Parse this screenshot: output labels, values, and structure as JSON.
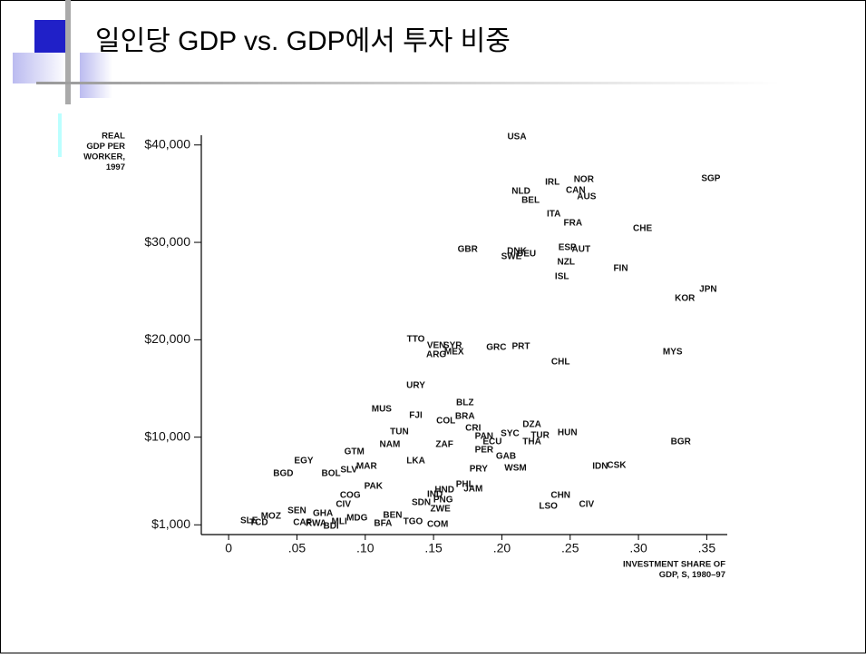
{
  "chart_data": {
    "type": "scatter",
    "title": "일인당 GDP vs. GDP에서 투자 비중",
    "y_label": [
      "REAL",
      "GDP PER",
      "WORKER,",
      "1997"
    ],
    "x_label": [
      "INVESTMENT SHARE OF",
      "GDP, S, 1980–97"
    ],
    "xlim": [
      -0.02,
      0.365
    ],
    "ylim": [
      0,
      41000
    ],
    "xticks": [
      0,
      {
        "value": 0.05,
        "label": ".05"
      },
      {
        "value": 0.1,
        "label": ".10"
      },
      {
        "value": 0.15,
        "label": ".15"
      },
      {
        "value": 0.2,
        "label": ".20"
      },
      {
        "value": 0.25,
        "label": ".25"
      },
      {
        "value": 0.3,
        "label": ".30"
      },
      {
        "value": 0.35,
        "label": ".35"
      }
    ],
    "yticks": [
      {
        "value": 1000,
        "label": "$1,000"
      },
      {
        "value": 10000,
        "label": "$10,000"
      },
      {
        "value": 20000,
        "label": "$20,000"
      },
      {
        "value": 30000,
        "label": "$30,000"
      },
      {
        "value": 40000,
        "label": "$40,000"
      }
    ],
    "labels": [
      "USA",
      "SGP",
      "IRL",
      "NOR",
      "CAN",
      "AUS",
      "NLD",
      "BEL",
      "ITA",
      "FRA",
      "CHE",
      "GBR",
      "DNK",
      "SWE",
      "DEU",
      "ESP",
      "AUT",
      "NZL",
      "ISL",
      "FIN",
      "JPN",
      "KOR",
      "TTO",
      "VEN",
      "SYR",
      "ARG",
      "MEX",
      "GRC",
      "PRT",
      "CHL",
      "MYS",
      "URY",
      "BLZ",
      "MUS",
      "FJI",
      "BRA",
      "COL",
      "CRI",
      "DZA",
      "TUN",
      "SYC",
      "PAN",
      "ECU",
      "TUR",
      "HUN",
      "THA",
      "NAM",
      "ZAF",
      "PER",
      "BGR",
      "GAB",
      "GTM",
      "EGY",
      "LKA",
      "MAR",
      "SLV",
      "PRY",
      "WSM",
      "IDN",
      "CSK",
      "BGD",
      "BOL",
      "PAK",
      "PHL",
      "HND",
      "JAM",
      "IND",
      "COG",
      "CHN",
      "PNG",
      "SDN",
      "LSO",
      "CIV",
      "CIV",
      "ZWE",
      "SEN",
      "GHA",
      "CAF",
      "RWA",
      "MOZ",
      "BDI",
      "BFA",
      "TGO",
      "COM",
      "MLI",
      "BEN",
      "MDG",
      "SLE",
      "TCD"
    ],
    "x": [
      0.211,
      0.353,
      0.237,
      0.26,
      0.254,
      0.262,
      0.214,
      0.221,
      0.238,
      0.252,
      0.303,
      0.175,
      0.211,
      0.207,
      0.218,
      0.248,
      0.258,
      0.247,
      0.244,
      0.287,
      0.351,
      0.334,
      0.137,
      0.152,
      0.164,
      0.152,
      0.165,
      0.196,
      0.214,
      0.243,
      0.325,
      0.137,
      0.173,
      0.112,
      0.137,
      0.173,
      0.159,
      0.179,
      0.222,
      0.125,
      0.206,
      0.187,
      0.193,
      0.228,
      0.248,
      0.222,
      0.118,
      0.158,
      0.187,
      0.331,
      0.203,
      0.092,
      0.055,
      0.137,
      0.101,
      0.088,
      0.183,
      0.21,
      0.272,
      0.284,
      0.04,
      0.075,
      0.106,
      0.173,
      0.158,
      0.179,
      0.151,
      0.089,
      0.243,
      0.157,
      0.141,
      0.234,
      0.262,
      0.084,
      0.155,
      0.05,
      0.069,
      0.054,
      0.064,
      0.031,
      0.075,
      0.113,
      0.135,
      0.153,
      0.081,
      0.12,
      0.094,
      0.015,
      0.022
    ],
    "values": [
      40820,
      36530,
      36160,
      36440,
      35320,
      34670,
      35230,
      34300,
      32900,
      31970,
      31410,
      29260,
      29080,
      28520,
      28800,
      29450,
      29260,
      27960,
      26470,
      27310,
      25160,
      24230,
      20040,
      19380,
      19380,
      18450,
      18730,
      19200,
      19290,
      17710,
      18730,
      15280,
      13510,
      12860,
      12210,
      12120,
      11650,
      10900,
      11280,
      10530,
      10340,
      10070,
      9510,
      10160,
      10440,
      9510,
      9230,
      9230,
      8670,
      9510,
      8010,
      8480,
      7550,
      7550,
      6990,
      6620,
      6710,
      6800,
      6990,
      7080,
      6240,
      6240,
      4940,
      5130,
      4570,
      4660,
      4100,
      4010,
      4010,
      3540,
      3260,
      2890,
      3080,
      3080,
      2610,
      2420,
      2140,
      1210,
      1120,
      1860,
      840,
      1120,
      1300,
      1030,
      1300,
      1960,
      1680,
      1400,
      1210
    ]
  }
}
